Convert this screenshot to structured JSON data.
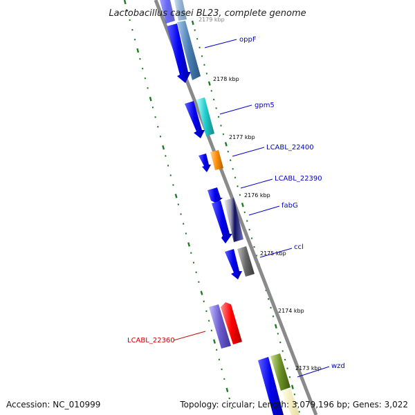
{
  "title": "Lactobacillus casei BL23, complete genome",
  "footer": {
    "accession": "Accession: NC_010999",
    "summary": "Topology: circular; Length: 3,079,196 bp; Genes: 3,022"
  },
  "colors": {
    "backbone": "#8a8a8a",
    "tick": "#1f7a1f",
    "forward_strand": "#0000ee",
    "label_blue": "#0000cc",
    "label_red": "#cc0000"
  },
  "ticks": [
    "2179 kbp",
    "2178 kbp",
    "2177 kbp",
    "2176 kbp",
    "2175 kbp",
    "2174 kbp",
    "2173 kbp"
  ],
  "genes": [
    {
      "label": "oppF",
      "color": "#4a7fb5"
    },
    {
      "label": "gpm5",
      "color": "#22cccc"
    },
    {
      "label": "LCABL_22400",
      "color": "#ff8c00"
    },
    {
      "label": "LCABL_22390",
      "color": "#0000ee"
    },
    {
      "label": "fabG",
      "color": "#3d3d99"
    },
    {
      "label": "ccl",
      "color": "#666666"
    },
    {
      "label": "LCABL_22360",
      "color": "#ff0000"
    },
    {
      "label": "wzd",
      "color": "#6b8e23"
    }
  ]
}
